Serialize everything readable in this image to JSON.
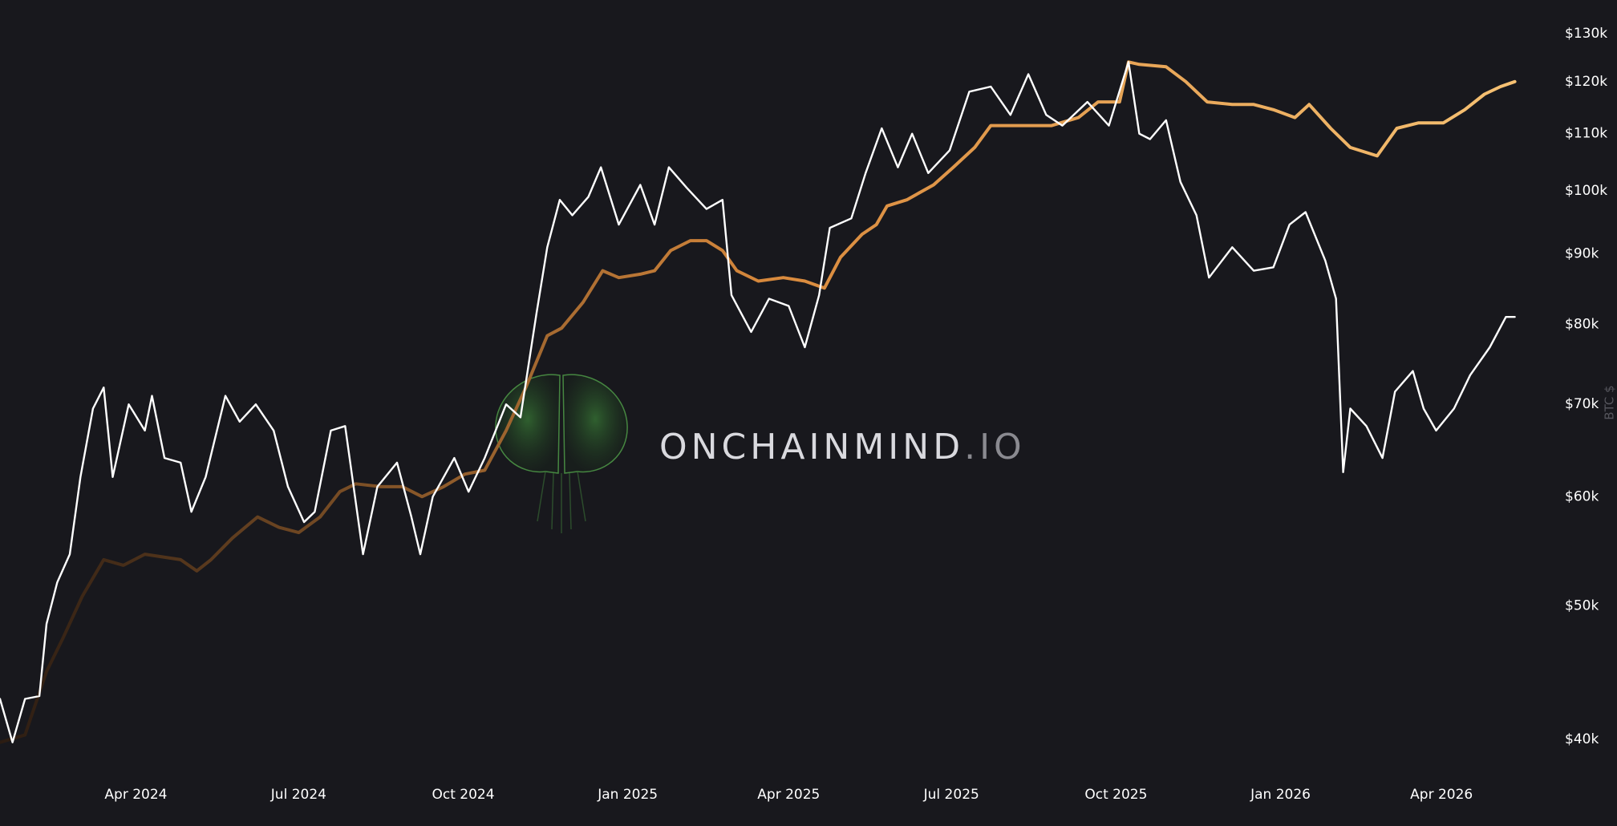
{
  "chart_data": {
    "type": "line",
    "log_scale": true,
    "y_axis_label": "BTC $",
    "watermark": {
      "text": "ONCHAINMIND",
      "suffix": ".IO"
    },
    "xlim": [
      "2024-01-16",
      "2026-05-31"
    ],
    "xticks": [
      {
        "value": "2024-04-01",
        "label": "Apr 2024"
      },
      {
        "value": "2024-07-01",
        "label": "Jul 2024"
      },
      {
        "value": "2024-10-01",
        "label": "Oct 2024"
      },
      {
        "value": "2025-01-01",
        "label": "Jan 2025"
      },
      {
        "value": "2025-04-01",
        "label": "Apr 2025"
      },
      {
        "value": "2025-07-01",
        "label": "Jul 2025"
      },
      {
        "value": "2025-10-01",
        "label": "Oct 2025"
      },
      {
        "value": "2026-01-01",
        "label": "Jan 2026"
      },
      {
        "value": "2026-04-01",
        "label": "Apr 2026"
      }
    ],
    "ylim": [
      40000,
      130000
    ],
    "yticks": [
      {
        "value": 40000,
        "label": "$40k"
      },
      {
        "value": 50000,
        "label": "$50k"
      },
      {
        "value": 60000,
        "label": "$60k"
      },
      {
        "value": 70000,
        "label": "$70k"
      },
      {
        "value": 80000,
        "label": "$80k"
      },
      {
        "value": 90000,
        "label": "$90k"
      },
      {
        "value": 100000,
        "label": "$100k"
      },
      {
        "value": 110000,
        "label": "$110k"
      },
      {
        "value": 120000,
        "label": "$120k"
      },
      {
        "value": 130000,
        "label": "$130k"
      }
    ],
    "series": [
      {
        "color": [
          "#2b1c12",
          "#d98a3d",
          "#f7c375"
        ],
        "x": [
          "2024-01-16",
          "2024-01-30",
          "2024-02-11",
          "2024-02-20",
          "2024-03-02",
          "2024-03-14",
          "2024-03-25",
          "2024-04-06",
          "2024-04-26",
          "2024-05-05",
          "2024-05-13",
          "2024-05-25",
          "2024-06-08",
          "2024-06-20",
          "2024-07-01",
          "2024-07-13",
          "2024-07-24",
          "2024-08-02",
          "2024-08-16",
          "2024-08-28",
          "2024-09-08",
          "2024-09-20",
          "2024-10-02",
          "2024-10-13",
          "2024-10-25",
          "2024-11-05",
          "2024-11-17",
          "2024-11-25",
          "2024-12-07",
          "2024-12-18",
          "2024-12-27",
          "2025-01-08",
          "2025-01-16",
          "2025-01-25",
          "2025-02-05",
          "2025-02-14",
          "2025-02-23",
          "2025-03-03",
          "2025-03-15",
          "2025-03-29",
          "2025-04-10",
          "2025-04-21",
          "2025-04-30",
          "2025-05-12",
          "2025-05-20",
          "2025-05-26",
          "2025-06-06",
          "2025-06-21",
          "2025-07-02",
          "2025-07-14",
          "2025-07-23",
          "2025-08-03",
          "2025-08-15",
          "2025-08-26",
          "2025-09-10",
          "2025-09-21",
          "2025-10-03",
          "2025-10-08",
          "2025-10-14",
          "2025-10-29",
          "2025-11-09",
          "2025-11-21",
          "2025-12-05",
          "2025-12-17",
          "2025-12-28",
          "2026-01-09",
          "2026-01-17",
          "2026-01-29",
          "2026-02-09",
          "2026-02-24",
          "2026-03-07",
          "2026-03-19",
          "2026-04-02",
          "2026-04-14",
          "2026-04-25",
          "2026-05-04",
          "2026-05-12"
        ],
        "values": [
          39800,
          40300,
          44800,
          47300,
          50800,
          54000,
          53500,
          54500,
          54000,
          53000,
          54000,
          56000,
          58000,
          57000,
          56500,
          58000,
          60500,
          61300,
          61000,
          61000,
          60000,
          61000,
          62300,
          62700,
          67000,
          72000,
          78500,
          79500,
          83000,
          87500,
          86500,
          87000,
          87500,
          90500,
          92000,
          92000,
          90500,
          87500,
          86000,
          86500,
          86000,
          85000,
          89500,
          93000,
          94500,
          97500,
          98500,
          101000,
          104000,
          107500,
          111500,
          111500,
          111500,
          111500,
          113000,
          116000,
          116000,
          124000,
          123500,
          123000,
          120000,
          116000,
          115500,
          115500,
          114500,
          113000,
          115500,
          111000,
          107500,
          106000,
          111000,
          112000,
          112000,
          114500,
          117500,
          119000,
          120000
        ]
      },
      {
        "color": "#ffffff",
        "x": [
          "2024-01-16",
          "2024-01-23",
          "2024-01-30",
          "2024-02-07",
          "2024-02-11",
          "2024-02-17",
          "2024-02-24",
          "2024-03-01",
          "2024-03-08",
          "2024-03-14",
          "2024-03-19",
          "2024-03-28",
          "2024-04-06",
          "2024-04-10",
          "2024-04-17",
          "2024-04-26",
          "2024-05-02",
          "2024-05-10",
          "2024-05-21",
          "2024-05-29",
          "2024-06-07",
          "2024-06-17",
          "2024-06-25",
          "2024-07-04",
          "2024-07-10",
          "2024-07-19",
          "2024-07-27",
          "2024-08-06",
          "2024-08-14",
          "2024-08-25",
          "2024-09-02",
          "2024-09-07",
          "2024-09-14",
          "2024-09-26",
          "2024-10-04",
          "2024-10-13",
          "2024-10-25",
          "2024-11-02",
          "2024-11-11",
          "2024-11-17",
          "2024-11-24",
          "2024-12-01",
          "2024-12-10",
          "2024-12-17",
          "2024-12-27",
          "2025-01-08",
          "2025-01-16",
          "2025-01-24",
          "2025-02-03",
          "2025-02-14",
          "2025-02-23",
          "2025-02-28",
          "2025-03-11",
          "2025-03-21",
          "2025-04-01",
          "2025-04-10",
          "2025-04-18",
          "2025-04-24",
          "2025-05-06",
          "2025-05-14",
          "2025-05-23",
          "2025-06-01",
          "2025-06-09",
          "2025-06-18",
          "2025-06-30",
          "2025-07-11",
          "2025-07-23",
          "2025-08-03",
          "2025-08-13",
          "2025-08-23",
          "2025-09-01",
          "2025-09-15",
          "2025-09-27",
          "2025-10-08",
          "2025-10-14",
          "2025-10-20",
          "2025-10-29",
          "2025-11-06",
          "2025-11-15",
          "2025-11-22",
          "2025-12-05",
          "2025-12-17",
          "2025-12-28",
          "2026-01-06",
          "2026-01-15",
          "2026-01-26",
          "2026-02-01",
          "2026-02-05",
          "2026-02-09",
          "2026-02-18",
          "2026-02-27",
          "2026-03-06",
          "2026-03-16",
          "2026-03-22",
          "2026-03-29",
          "2026-04-08",
          "2026-04-17",
          "2026-04-28",
          "2026-05-07",
          "2026-05-12"
        ],
        "values": [
          42800,
          39800,
          42800,
          43000,
          48500,
          52000,
          54500,
          62000,
          69500,
          72000,
          62000,
          70000,
          67000,
          71000,
          64000,
          63500,
          58500,
          62000,
          71000,
          68000,
          70000,
          67000,
          61000,
          57500,
          58500,
          67000,
          67500,
          54500,
          61000,
          63500,
          58000,
          54500,
          60000,
          64000,
          60500,
          64000,
          70000,
          68500,
          81500,
          91000,
          98500,
          96000,
          99000,
          104000,
          94500,
          101000,
          94500,
          104000,
          100500,
          97000,
          98500,
          84000,
          79000,
          83500,
          82500,
          77000,
          84000,
          94000,
          95500,
          103000,
          111000,
          104000,
          110000,
          103000,
          107000,
          118000,
          119000,
          113500,
          121500,
          113500,
          111500,
          116000,
          111500,
          124000,
          110000,
          109000,
          112500,
          101500,
          96000,
          86500,
          91000,
          87500,
          88000,
          94500,
          96500,
          89000,
          83500,
          62500,
          69500,
          67500,
          64000,
          71500,
          74000,
          69500,
          67000,
          69500,
          73500,
          77000,
          81000,
          81000
        ]
      }
    ]
  }
}
